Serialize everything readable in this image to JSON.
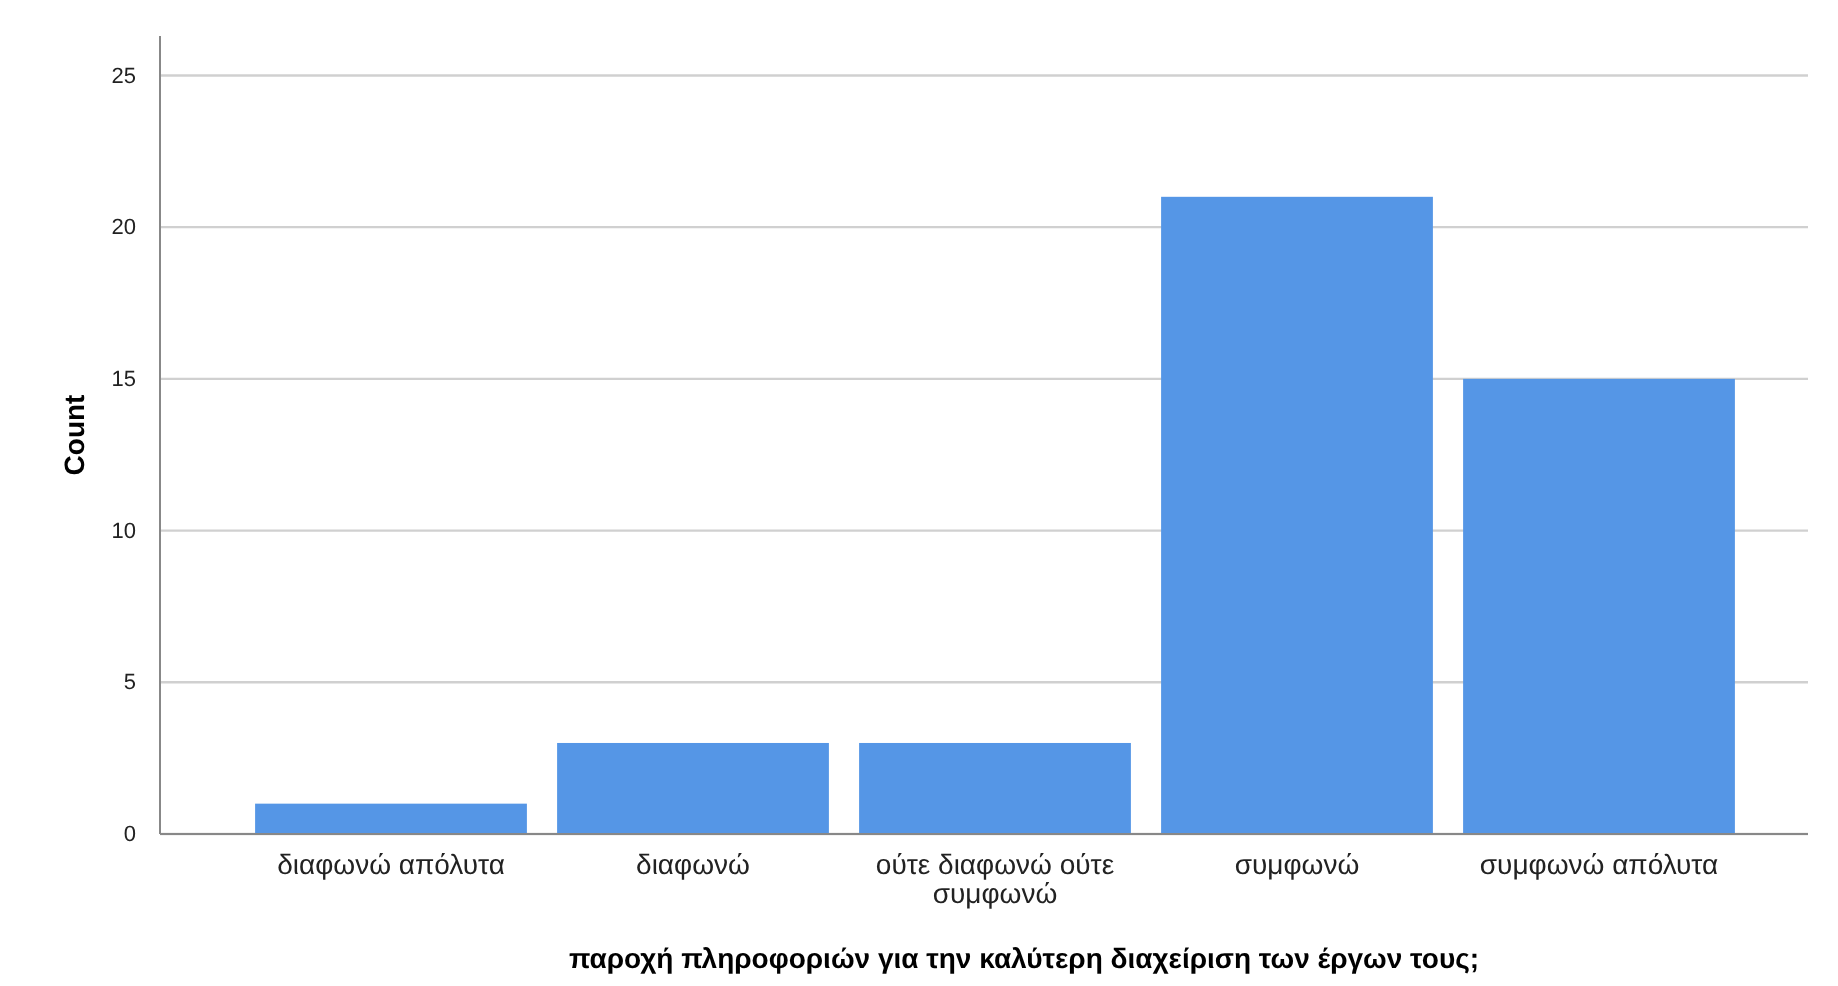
{
  "chart_data": {
    "type": "bar",
    "xlabel": "παροχή πληροφοριών για την καλύτερη διαχείριση των έργων τους;",
    "ylabel": "Count",
    "categories": [
      "διαφωνώ απόλυτα",
      "διαφωνώ",
      "ούτε διαφωνώ ούτε συμφωνώ",
      "συμφωνώ",
      "συμφωνώ απόλυτα"
    ],
    "values": [
      1,
      3,
      3,
      21,
      15
    ],
    "color": "#5596e6",
    "ylim": [
      0,
      26.3
    ],
    "yticks": [
      0,
      5,
      10,
      15,
      20,
      25
    ],
    "grid": "y"
  }
}
